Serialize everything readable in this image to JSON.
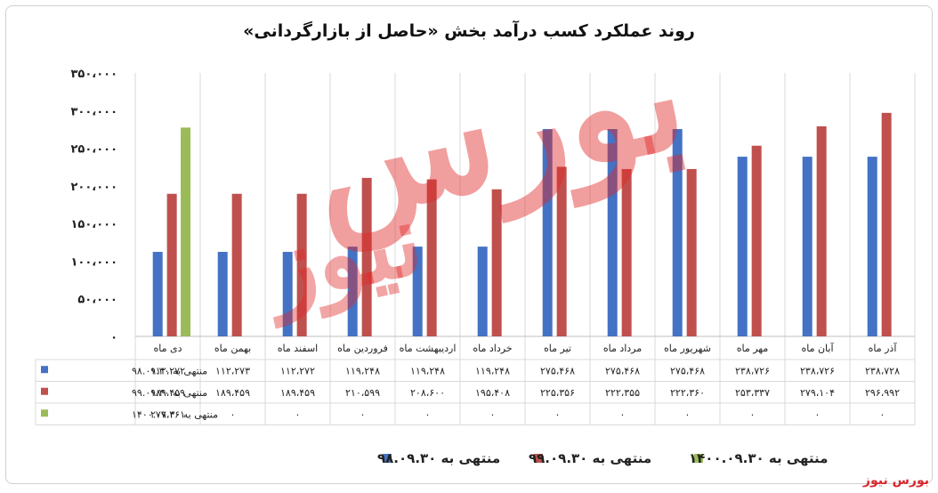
{
  "chart_data": {
    "type": "bar",
    "title": "روند عملکرد کسب درآمد بخش «حاصل از بازارگردانی»",
    "categories": [
      "دی ماه",
      "بهمن ماه",
      "اسفند ماه",
      "فروردین ماه",
      "اردیبهشت ماه",
      "خرداد ماه",
      "تیر ماه",
      "مرداد ماه",
      "شهریور ماه",
      "مهر ماه",
      "آبان ماه",
      "آذر ماه"
    ],
    "series": [
      {
        "name": "منتهی به ۹۸.۰۹.۳۰",
        "color": "#4472c4",
        "values": [
          112272,
          112273,
          112272,
          119248,
          119248,
          119248,
          275468,
          275468,
          275468,
          238726,
          238726,
          238728
        ],
        "labels": [
          "۱۱۲،۲۷۲",
          "۱۱۲،۲۷۳",
          "۱۱۲،۲۷۲",
          "۱۱۹،۲۴۸",
          "۱۱۹،۲۴۸",
          "۱۱۹،۲۴۸",
          "۲۷۵،۴۶۸",
          "۲۷۵،۴۶۸",
          "۲۷۵،۴۶۸",
          "۲۳۸،۷۲۶",
          "۲۳۸،۷۲۶",
          "۲۳۸،۷۲۸"
        ]
      },
      {
        "name": "منتهی به ۹۹.۰۹.۳۰",
        "color": "#c0504d",
        "values": [
          189459,
          189459,
          189459,
          210599,
          208600,
          195408,
          225356,
          222355,
          222360,
          253337,
          279104,
          296992
        ],
        "labels": [
          "۱۸۹،۴۵۹",
          "۱۸۹،۴۵۹",
          "۱۸۹،۴۵۹",
          "۲۱۰،۵۹۹",
          "۲۰۸،۶۰۰",
          "۱۹۵،۴۰۸",
          "۲۲۵،۳۵۶",
          "۲۲۲،۳۵۵",
          "۲۲۲،۳۶۰",
          "۲۵۳،۳۳۷",
          "۲۷۹،۱۰۴",
          "۲۹۶،۹۹۲"
        ]
      },
      {
        "name": "منتهی به ۱۴۰۰.۰۹.۳۰",
        "color": "#9bbb59",
        "values": [
          277461,
          0,
          0,
          0,
          0,
          0,
          0,
          0,
          0,
          0,
          0,
          0
        ],
        "labels": [
          "۲۷۷،۴۶۱",
          "۰",
          "۰",
          "۰",
          "۰",
          "۰",
          "۰",
          "۰",
          "۰",
          "۰",
          "۰",
          "۰"
        ]
      }
    ],
    "ylim": [
      0,
      350000
    ],
    "yticks": [
      "۰",
      "۵۰،۰۰۰",
      "۱۰۰،۰۰۰",
      "۱۵۰،۰۰۰",
      "۲۰۰،۰۰۰",
      "۲۵۰،۰۰۰",
      "۳۰۰،۰۰۰",
      "۳۵۰،۰۰۰"
    ],
    "grid": true,
    "legend": "bottom",
    "data_table": true
  },
  "watermark": {
    "line1": "بورس",
    "line2": "نیوز"
  },
  "brand": "بورس نیوز"
}
